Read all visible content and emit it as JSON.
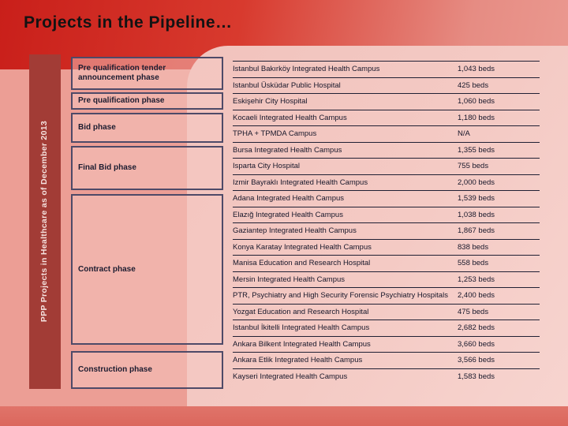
{
  "slide": {
    "title": "Projects in the Pipeline…",
    "sidebar_label": "PPP Projects in Healthcare as of December 2013"
  },
  "phases": [
    {
      "label": "Pre qualification tender announcement phase"
    },
    {
      "label": "Pre qualification phase"
    },
    {
      "label": "Bid phase"
    },
    {
      "label": "Final Bid phase"
    },
    {
      "label": "Contract phase"
    },
    {
      "label": "Construction phase"
    }
  ],
  "table": {
    "rows": [
      {
        "name": "Istanbul Bakırköy Integrated Health Campus",
        "beds": "1,043 beds"
      },
      {
        "name": "Istanbul Üsküdar Public Hospital",
        "beds": "425 beds"
      },
      {
        "name": "Eskişehir City Hospital",
        "beds": "1,060 beds"
      },
      {
        "name": "Kocaeli Integrated Health Campus",
        "beds": "1,180 beds"
      },
      {
        "name": "TPHA + TPMDA Campus",
        "beds": "N/A"
      },
      {
        "name": "Bursa Integrated Health Campus",
        "beds": "1,355 beds"
      },
      {
        "name": "Isparta City Hospital",
        "beds": "755 beds"
      },
      {
        "name": "Izmir Bayraklı Integrated Health Campus",
        "beds": "2,000 beds"
      },
      {
        "name": "Adana Integrated Health Campus",
        "beds": "1,539 beds"
      },
      {
        "name": "Elazığ Integrated Health Campus",
        "beds": "1,038 beds"
      },
      {
        "name": "Gaziantep Integrated Health Campus",
        "beds": "1,867 beds"
      },
      {
        "name": "Konya Karatay Integrated Health Campus",
        "beds": "838 beds"
      },
      {
        "name": "Manisa Education and Research Hospital",
        "beds": "558 beds"
      },
      {
        "name": "Mersin Integrated Health Campus",
        "beds": "1,253 beds"
      },
      {
        "name": "PTR, Psychiatry and High Security Forensic Psychiatry Hospitals",
        "beds": "2,400 beds"
      },
      {
        "name": "Yozgat Education and Research Hospital",
        "beds": "475 beds"
      },
      {
        "name": "Istanbul İkitelli Integrated Health Campus",
        "beds": "2,682 beds"
      },
      {
        "name": "Ankara Bilkent Integrated Health Campus",
        "beds": "3,660 beds"
      },
      {
        "name": "Ankara Etlik Integrated Health Campus",
        "beds": "3,566 beds"
      },
      {
        "name": "Kayseri Integrated Health Campus",
        "beds": "1,583 beds"
      }
    ]
  },
  "colors": {
    "top_band_red": "#c91f1a",
    "background_salmon": "#ec9e95",
    "panel_pink": "#f4cac4",
    "bottom_band": "#db675d",
    "sidebar_dark_red": "#a23c36",
    "phase_border": "#4e4a68",
    "text_dark": "#17172a"
  }
}
